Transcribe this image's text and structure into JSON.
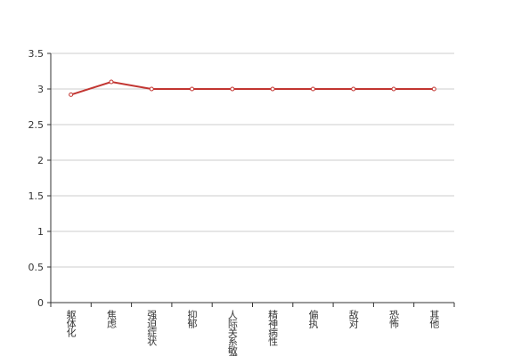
{
  "chart_data": {
    "type": "line",
    "categories": [
      "躯体化",
      "焦虑",
      "强迫症状",
      "抑郁",
      "人际关系敏感",
      "精神病性",
      "偏执",
      "敌对",
      "恐怖",
      "其他"
    ],
    "series": [
      {
        "color": "#c23531",
        "values": [
          2.92,
          3.1,
          3,
          3,
          3,
          3,
          3,
          3,
          3,
          3
        ]
      }
    ],
    "ylim": [
      0,
      3.5
    ],
    "yticks": [
      0,
      0.5,
      1,
      1.5,
      2,
      2.5,
      3,
      3.5
    ],
    "grid": true
  }
}
